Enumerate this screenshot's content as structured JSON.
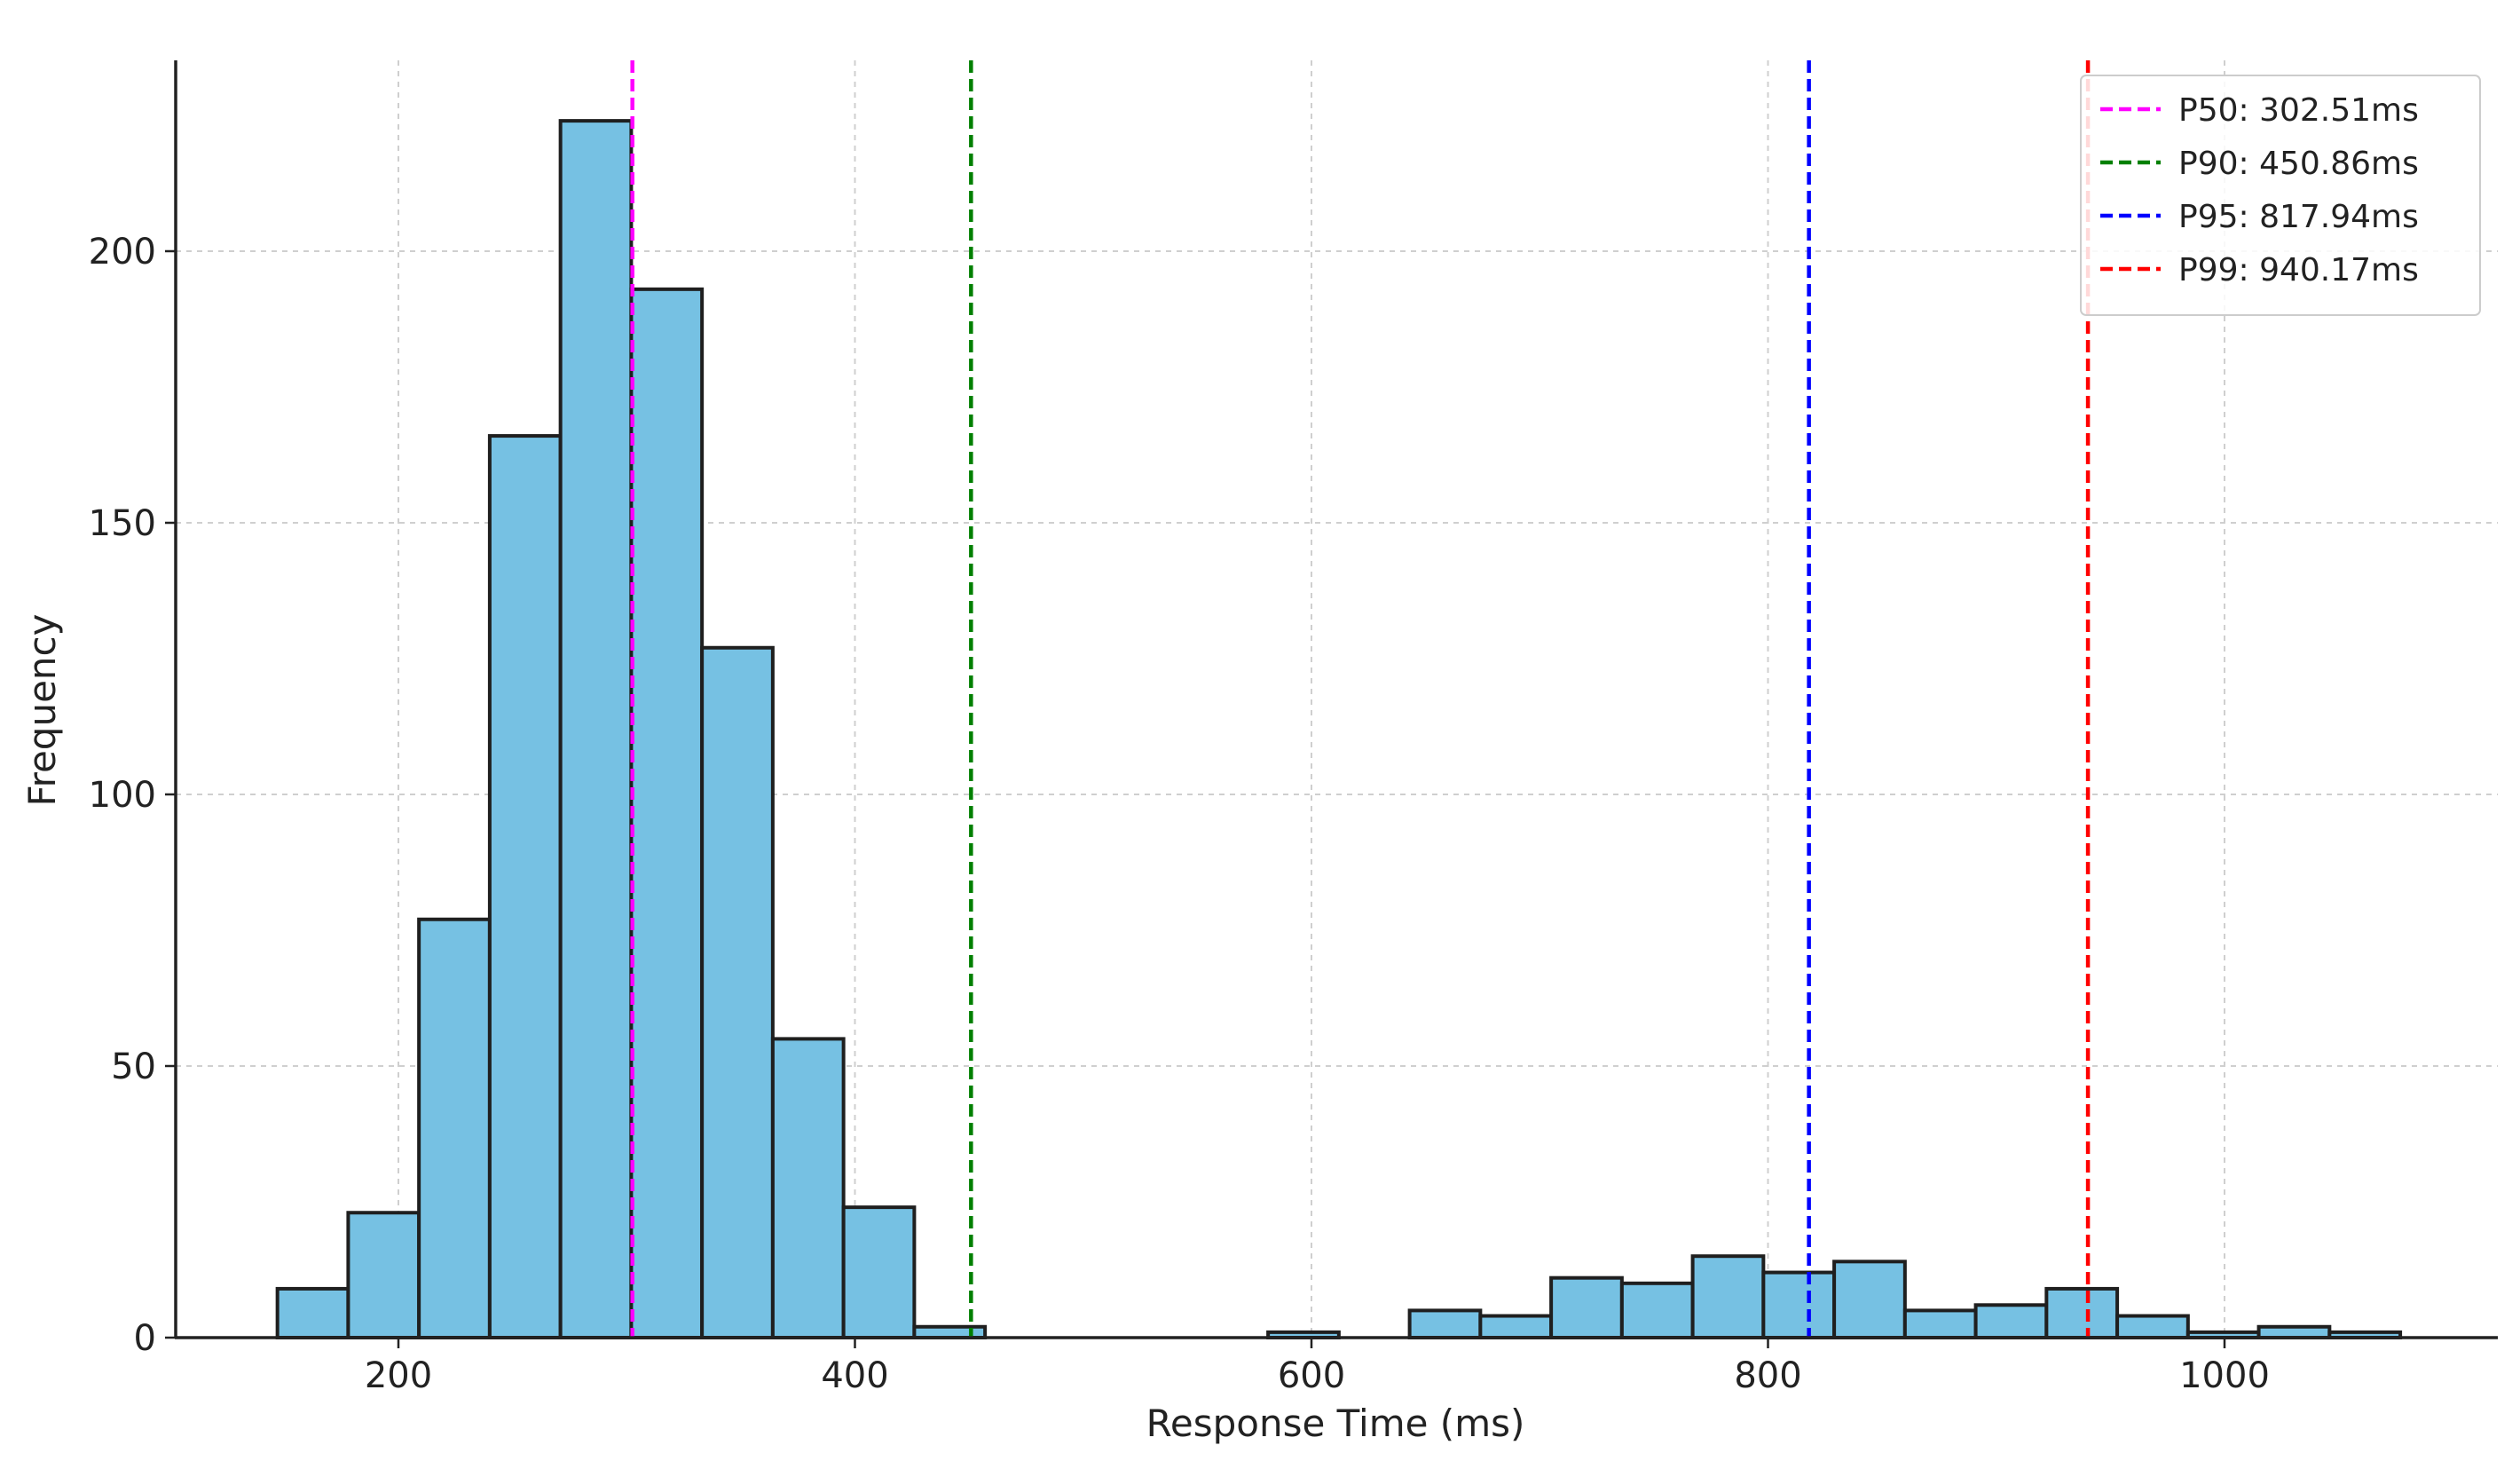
{
  "chart_data": {
    "type": "bar",
    "subtype": "histogram",
    "xlabel": "Response Time (ms)",
    "ylabel": "Frequency",
    "xlim": [
      100,
      1130
    ],
    "ylim": [
      0,
      235
    ],
    "xticks": [
      200,
      400,
      600,
      800,
      1000
    ],
    "yticks": [
      0,
      50,
      100,
      150,
      200
    ],
    "grid": true,
    "bar_color": "#76c1e3",
    "edge_color": "#1f1f1f",
    "bins": [
      {
        "x0": 147,
        "x1": 178,
        "count": 9
      },
      {
        "x0": 178,
        "x1": 209,
        "count": 23
      },
      {
        "x0": 209,
        "x1": 240,
        "count": 77
      },
      {
        "x0": 240,
        "x1": 271,
        "count": 166
      },
      {
        "x0": 271,
        "x1": 302,
        "count": 224
      },
      {
        "x0": 302,
        "x1": 333,
        "count": 193
      },
      {
        "x0": 333,
        "x1": 364,
        "count": 127
      },
      {
        "x0": 364,
        "x1": 395,
        "count": 55
      },
      {
        "x0": 395,
        "x1": 426,
        "count": 24
      },
      {
        "x0": 426,
        "x1": 457,
        "count": 2
      },
      {
        "x0": 581,
        "x1": 612,
        "count": 1
      },
      {
        "x0": 643,
        "x1": 674,
        "count": 5
      },
      {
        "x0": 674,
        "x1": 705,
        "count": 4
      },
      {
        "x0": 705,
        "x1": 736,
        "count": 11
      },
      {
        "x0": 736,
        "x1": 767,
        "count": 10
      },
      {
        "x0": 767,
        "x1": 798,
        "count": 15
      },
      {
        "x0": 798,
        "x1": 829,
        "count": 12
      },
      {
        "x0": 829,
        "x1": 860,
        "count": 14
      },
      {
        "x0": 860,
        "x1": 891,
        "count": 5
      },
      {
        "x0": 891,
        "x1": 922,
        "count": 6
      },
      {
        "x0": 922,
        "x1": 953,
        "count": 9
      },
      {
        "x0": 953,
        "x1": 984,
        "count": 4
      },
      {
        "x0": 984,
        "x1": 1015,
        "count": 1
      },
      {
        "x0": 1015,
        "x1": 1046,
        "count": 2
      },
      {
        "x0": 1046,
        "x1": 1077,
        "count": 1
      }
    ],
    "reference_lines": [
      {
        "name": "P50",
        "value": 302.51,
        "label": "P50: 302.51ms",
        "color": "#ff00ff"
      },
      {
        "name": "P90",
        "value": 450.86,
        "label": "P90: 450.86ms",
        "color": "#008000"
      },
      {
        "name": "P95",
        "value": 817.94,
        "label": "P95: 817.94ms",
        "color": "#0000ff"
      },
      {
        "name": "P99",
        "value": 940.17,
        "label": "P99: 940.17ms",
        "color": "#ff0000"
      }
    ],
    "legend": {
      "placement": "top-right"
    }
  }
}
